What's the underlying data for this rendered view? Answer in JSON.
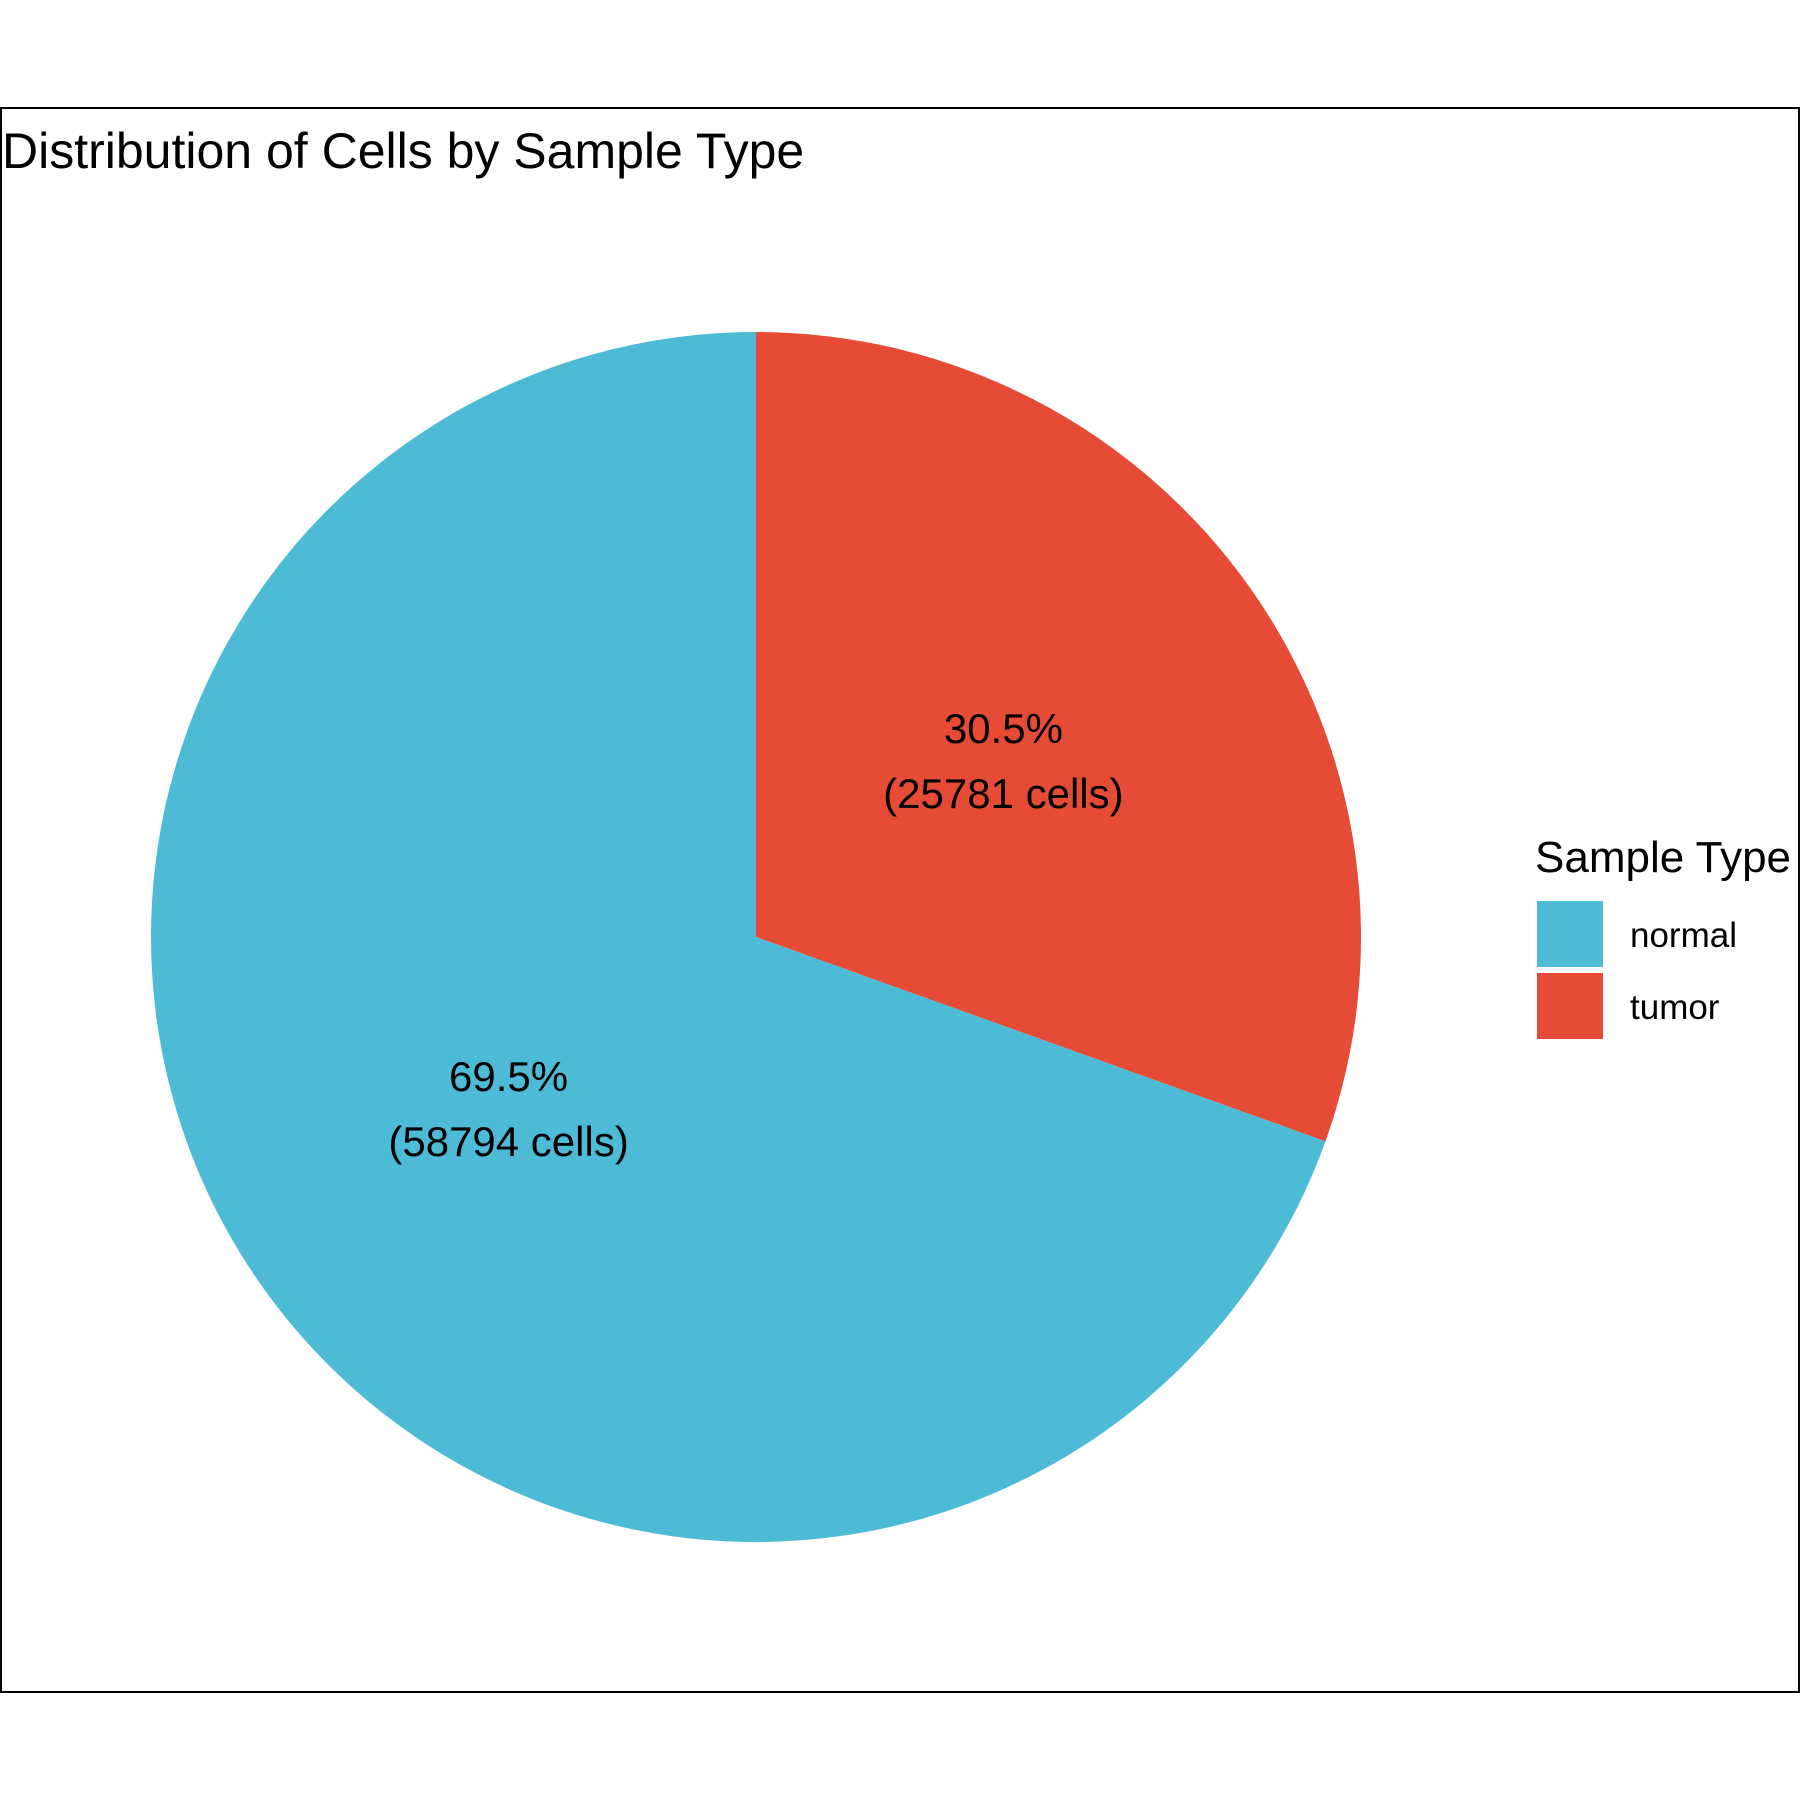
{
  "chart_data": {
    "type": "pie",
    "title": "Distribution of Cells by Sample Type",
    "legend": {
      "title": "Sample Type",
      "placement": "right"
    },
    "slices": [
      {
        "name": "tumor",
        "value": 25781,
        "percent_label": "30.5%",
        "count_label": "(25781 cells)",
        "color": "#E64B35"
      },
      {
        "name": "normal",
        "value": 58794,
        "percent_label": "69.5%",
        "count_label": "(58794 cells)",
        "color": "#4DBBD5"
      }
    ],
    "legend_items": [
      {
        "label": "normal",
        "color": "#4DBBD5"
      },
      {
        "label": "tumor",
        "color": "#E64B35"
      }
    ]
  }
}
